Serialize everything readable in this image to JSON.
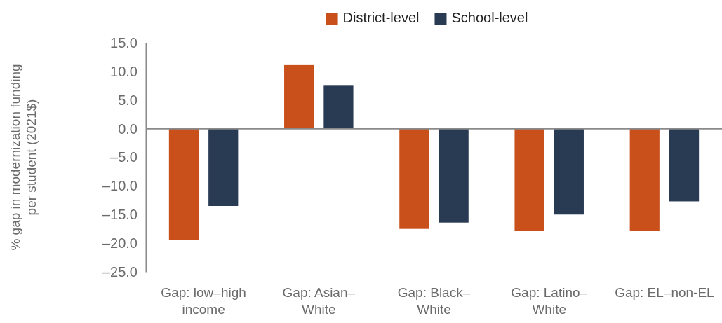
{
  "chart_data": {
    "type": "bar",
    "ylabel": "% gap in modernization funding per student (2021$)",
    "categories": [
      "Gap: low–high income",
      "Gap: Asian–White",
      "Gap: Black–White",
      "Gap: Latino–White",
      "Gap: EL–non-EL"
    ],
    "series": [
      {
        "name": "District-level",
        "color": "#c94f1b",
        "values": [
          -19.4,
          11.1,
          -17.5,
          -17.9,
          -17.9
        ]
      },
      {
        "name": "School-level",
        "color": "#293a53",
        "values": [
          -13.5,
          7.5,
          -16.4,
          -15.0,
          -12.7
        ]
      }
    ],
    "ylim": [
      -25,
      15
    ],
    "yticks": [
      {
        "value": 15,
        "label": "15.0"
      },
      {
        "value": 10,
        "label": "10.0"
      },
      {
        "value": 5,
        "label": "5.0"
      },
      {
        "value": 0,
        "label": "0.0"
      },
      {
        "value": -5,
        "label": "–5.0"
      },
      {
        "value": -10,
        "label": "–10.0"
      },
      {
        "value": -15,
        "label": "–15.0"
      },
      {
        "value": -20,
        "label": "–20.0"
      },
      {
        "value": -25,
        "label": "–25.0"
      }
    ],
    "legend": "top"
  }
}
